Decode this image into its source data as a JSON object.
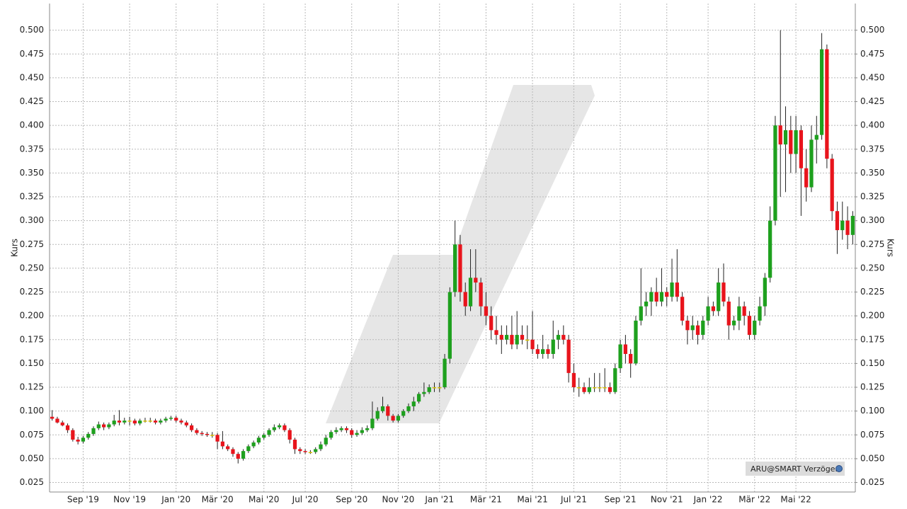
{
  "chart_data": {
    "type": "candlestick",
    "y_label": "Kurs",
    "y2_label": "Kurs",
    "source": "ARU@SMART Verzögert",
    "up_color": "#1ea01e",
    "down_color": "#e8141c",
    "flat_color": "#d9c200",
    "grid": true,
    "ylim": [
      0.015,
      0.528
    ],
    "y2lim": [
      0.015,
      0.528
    ],
    "yticks": [
      {
        "value": 0.025,
        "label": "0.025"
      },
      {
        "value": 0.05,
        "label": "0.050"
      },
      {
        "value": 0.075,
        "label": "0.075"
      },
      {
        "value": 0.1,
        "label": "0.100"
      },
      {
        "value": 0.125,
        "label": "0.125"
      },
      {
        "value": 0.15,
        "label": "0.150"
      },
      {
        "value": 0.175,
        "label": "0.175"
      },
      {
        "value": 0.2,
        "label": "0.200"
      },
      {
        "value": 0.225,
        "label": "0.225"
      },
      {
        "value": 0.25,
        "label": "0.250"
      },
      {
        "value": 0.275,
        "label": "0.275"
      },
      {
        "value": 0.3,
        "label": "0.300"
      },
      {
        "value": 0.325,
        "label": "0.325"
      },
      {
        "value": 0.35,
        "label": "0.350"
      },
      {
        "value": 0.375,
        "label": "0.375"
      },
      {
        "value": 0.4,
        "label": "0.400"
      },
      {
        "value": 0.425,
        "label": "0.425"
      },
      {
        "value": 0.45,
        "label": "0.450"
      },
      {
        "value": 0.475,
        "label": "0.475"
      },
      {
        "value": 0.5,
        "label": "0.500"
      }
    ],
    "y2ticks": [
      {
        "value": 0.025,
        "label": "0.025"
      },
      {
        "value": 0.05,
        "label": "0.050"
      },
      {
        "value": 0.075,
        "label": "0.075"
      },
      {
        "value": 0.1,
        "label": "0.100"
      },
      {
        "value": 0.125,
        "label": "0.125"
      },
      {
        "value": 0.15,
        "label": "0.150"
      },
      {
        "value": 0.175,
        "label": "0.175"
      },
      {
        "value": 0.2,
        "label": "0.200"
      },
      {
        "value": 0.225,
        "label": "0.225"
      },
      {
        "value": 0.25,
        "label": "0.250"
      },
      {
        "value": 0.275,
        "label": "0.275"
      },
      {
        "value": 0.3,
        "label": "0.300"
      },
      {
        "value": 0.325,
        "label": "0.325"
      },
      {
        "value": 0.35,
        "label": "0.350"
      },
      {
        "value": 0.375,
        "label": "0.375"
      },
      {
        "value": 0.4,
        "label": "0.400"
      },
      {
        "value": 0.425,
        "label": "0.425"
      },
      {
        "value": 0.45,
        "label": "0.450"
      },
      {
        "value": 0.475,
        "label": "0.475"
      },
      {
        "value": 0.5,
        "label": "0.500"
      }
    ],
    "categories": [
      null,
      null,
      null,
      null,
      null,
      null,
      "Sep '19",
      null,
      null,
      null,
      null,
      null,
      null,
      null,
      null,
      "Nov '19",
      null,
      null,
      null,
      null,
      null,
      null,
      null,
      null,
      "Jan '20",
      null,
      null,
      null,
      null,
      null,
      null,
      null,
      "Mär '20",
      null,
      null,
      null,
      null,
      null,
      null,
      null,
      null,
      "Mai '20",
      null,
      null,
      null,
      null,
      null,
      null,
      null,
      "Jul '20",
      null,
      null,
      null,
      null,
      null,
      null,
      null,
      null,
      "Sep '20",
      null,
      null,
      null,
      null,
      null,
      null,
      null,
      null,
      "Nov '20",
      null,
      null,
      null,
      null,
      null,
      null,
      null,
      "Jan '21",
      null,
      null,
      null,
      null,
      null,
      null,
      null,
      null,
      "Mär '21",
      null,
      null,
      null,
      null,
      null,
      null,
      null,
      null,
      "Mai '21",
      null,
      null,
      null,
      null,
      null,
      null,
      null,
      "Jul '21",
      null,
      null,
      null,
      null,
      null,
      null,
      null,
      null,
      "Sep '21",
      null,
      null,
      null,
      null,
      null,
      null,
      null,
      null,
      "Nov '21",
      null,
      null,
      null,
      null,
      null,
      null,
      null,
      "Jan '22",
      null,
      null,
      null,
      null,
      null,
      null,
      null,
      null,
      "Mär '22",
      null,
      null,
      null,
      null,
      null,
      null,
      null,
      "Mai '22",
      null,
      null,
      null,
      null,
      null,
      null,
      null,
      null,
      null,
      null,
      null
    ],
    "ohlc": [
      [
        0.094,
        0.101,
        0.09,
        0.092
      ],
      [
        0.092,
        0.094,
        0.087,
        0.088
      ],
      [
        0.088,
        0.09,
        0.084,
        0.085
      ],
      [
        0.085,
        0.087,
        0.077,
        0.08
      ],
      [
        0.08,
        0.082,
        0.068,
        0.07
      ],
      [
        0.07,
        0.073,
        0.065,
        0.068
      ],
      [
        0.068,
        0.074,
        0.066,
        0.072
      ],
      [
        0.072,
        0.078,
        0.07,
        0.076
      ],
      [
        0.076,
        0.084,
        0.074,
        0.082
      ],
      [
        0.082,
        0.089,
        0.08,
        0.086
      ],
      [
        0.086,
        0.088,
        0.08,
        0.083
      ],
      [
        0.083,
        0.088,
        0.081,
        0.086
      ],
      [
        0.086,
        0.096,
        0.084,
        0.09
      ],
      [
        0.09,
        0.101,
        0.085,
        0.088
      ],
      [
        0.088,
        0.093,
        0.086,
        0.09
      ],
      [
        0.09,
        0.094,
        0.085,
        0.09
      ],
      [
        0.09,
        0.092,
        0.085,
        0.087
      ],
      [
        0.087,
        0.092,
        0.085,
        0.09
      ],
      [
        0.09,
        0.093,
        0.088,
        0.09
      ],
      [
        0.09,
        0.093,
        0.088,
        0.09
      ],
      [
        0.09,
        0.092,
        0.086,
        0.088
      ],
      [
        0.088,
        0.092,
        0.086,
        0.09
      ],
      [
        0.09,
        0.094,
        0.088,
        0.092
      ],
      [
        0.092,
        0.095,
        0.09,
        0.093
      ],
      [
        0.093,
        0.095,
        0.088,
        0.09
      ],
      [
        0.09,
        0.092,
        0.086,
        0.088
      ],
      [
        0.088,
        0.09,
        0.083,
        0.085
      ],
      [
        0.085,
        0.087,
        0.078,
        0.08
      ],
      [
        0.08,
        0.082,
        0.075,
        0.077
      ],
      [
        0.077,
        0.079,
        0.074,
        0.076
      ],
      [
        0.076,
        0.078,
        0.073,
        0.075
      ],
      [
        0.075,
        0.078,
        0.072,
        0.075
      ],
      [
        0.075,
        0.077,
        0.06,
        0.068
      ],
      [
        0.068,
        0.079,
        0.06,
        0.063
      ],
      [
        0.063,
        0.065,
        0.058,
        0.06
      ],
      [
        0.06,
        0.062,
        0.052,
        0.055
      ],
      [
        0.055,
        0.057,
        0.045,
        0.05
      ],
      [
        0.05,
        0.06,
        0.048,
        0.058
      ],
      [
        0.058,
        0.065,
        0.056,
        0.063
      ],
      [
        0.063,
        0.069,
        0.061,
        0.067
      ],
      [
        0.067,
        0.074,
        0.065,
        0.072
      ],
      [
        0.072,
        0.077,
        0.07,
        0.075
      ],
      [
        0.075,
        0.082,
        0.073,
        0.08
      ],
      [
        0.08,
        0.086,
        0.078,
        0.083
      ],
      [
        0.083,
        0.087,
        0.081,
        0.085
      ],
      [
        0.085,
        0.087,
        0.078,
        0.08
      ],
      [
        0.08,
        0.082,
        0.066,
        0.07
      ],
      [
        0.07,
        0.072,
        0.055,
        0.06
      ],
      [
        0.06,
        0.062,
        0.055,
        0.058
      ],
      [
        0.058,
        0.06,
        0.055,
        0.057
      ],
      [
        0.057,
        0.059,
        0.055,
        0.057
      ],
      [
        0.057,
        0.062,
        0.055,
        0.06
      ],
      [
        0.06,
        0.068,
        0.058,
        0.065
      ],
      [
        0.065,
        0.075,
        0.063,
        0.072
      ],
      [
        0.072,
        0.08,
        0.07,
        0.078
      ],
      [
        0.078,
        0.083,
        0.076,
        0.08
      ],
      [
        0.08,
        0.084,
        0.078,
        0.082
      ],
      [
        0.082,
        0.084,
        0.077,
        0.08
      ],
      [
        0.08,
        0.082,
        0.072,
        0.075
      ],
      [
        0.075,
        0.08,
        0.073,
        0.077
      ],
      [
        0.077,
        0.083,
        0.075,
        0.08
      ],
      [
        0.08,
        0.085,
        0.078,
        0.082
      ],
      [
        0.082,
        0.11,
        0.08,
        0.092
      ],
      [
        0.092,
        0.104,
        0.09,
        0.1
      ],
      [
        0.1,
        0.115,
        0.098,
        0.105
      ],
      [
        0.105,
        0.107,
        0.09,
        0.095
      ],
      [
        0.095,
        0.097,
        0.088,
        0.09
      ],
      [
        0.09,
        0.097,
        0.088,
        0.095
      ],
      [
        0.095,
        0.102,
        0.093,
        0.1
      ],
      [
        0.1,
        0.108,
        0.098,
        0.105
      ],
      [
        0.105,
        0.115,
        0.1,
        0.11
      ],
      [
        0.11,
        0.12,
        0.108,
        0.118
      ],
      [
        0.118,
        0.13,
        0.115,
        0.12
      ],
      [
        0.12,
        0.128,
        0.118,
        0.125
      ],
      [
        0.125,
        0.13,
        0.12,
        0.125
      ],
      [
        0.125,
        0.13,
        0.12,
        0.125
      ],
      [
        0.125,
        0.16,
        0.123,
        0.155
      ],
      [
        0.155,
        0.23,
        0.15,
        0.225
      ],
      [
        0.225,
        0.3,
        0.22,
        0.275
      ],
      [
        0.275,
        0.285,
        0.215,
        0.225
      ],
      [
        0.225,
        0.235,
        0.2,
        0.21
      ],
      [
        0.21,
        0.27,
        0.205,
        0.24
      ],
      [
        0.24,
        0.27,
        0.225,
        0.235
      ],
      [
        0.235,
        0.24,
        0.2,
        0.21
      ],
      [
        0.21,
        0.225,
        0.19,
        0.2
      ],
      [
        0.2,
        0.21,
        0.175,
        0.185
      ],
      [
        0.185,
        0.2,
        0.17,
        0.18
      ],
      [
        0.18,
        0.19,
        0.16,
        0.175
      ],
      [
        0.175,
        0.19,
        0.17,
        0.18
      ],
      [
        0.18,
        0.2,
        0.165,
        0.17
      ],
      [
        0.17,
        0.205,
        0.165,
        0.18
      ],
      [
        0.18,
        0.19,
        0.17,
        0.175
      ],
      [
        0.175,
        0.19,
        0.165,
        0.175
      ],
      [
        0.175,
        0.205,
        0.16,
        0.165
      ],
      [
        0.165,
        0.17,
        0.155,
        0.16
      ],
      [
        0.16,
        0.18,
        0.155,
        0.165
      ],
      [
        0.165,
        0.17,
        0.155,
        0.16
      ],
      [
        0.16,
        0.195,
        0.155,
        0.175
      ],
      [
        0.175,
        0.185,
        0.165,
        0.18
      ],
      [
        0.18,
        0.19,
        0.17,
        0.175
      ],
      [
        0.175,
        0.18,
        0.13,
        0.14
      ],
      [
        0.14,
        0.15,
        0.12,
        0.125
      ],
      [
        0.125,
        0.135,
        0.115,
        0.125
      ],
      [
        0.125,
        0.13,
        0.118,
        0.12
      ],
      [
        0.12,
        0.135,
        0.118,
        0.125
      ],
      [
        0.125,
        0.14,
        0.12,
        0.125
      ],
      [
        0.125,
        0.14,
        0.12,
        0.125
      ],
      [
        0.125,
        0.145,
        0.12,
        0.125
      ],
      [
        0.125,
        0.13,
        0.118,
        0.12
      ],
      [
        0.12,
        0.15,
        0.118,
        0.145
      ],
      [
        0.145,
        0.175,
        0.14,
        0.17
      ],
      [
        0.17,
        0.18,
        0.15,
        0.16
      ],
      [
        0.16,
        0.165,
        0.135,
        0.15
      ],
      [
        0.15,
        0.2,
        0.148,
        0.195
      ],
      [
        0.195,
        0.25,
        0.19,
        0.21
      ],
      [
        0.21,
        0.225,
        0.2,
        0.215
      ],
      [
        0.215,
        0.23,
        0.2,
        0.225
      ],
      [
        0.225,
        0.24,
        0.21,
        0.215
      ],
      [
        0.215,
        0.25,
        0.21,
        0.225
      ],
      [
        0.225,
        0.23,
        0.21,
        0.22
      ],
      [
        0.22,
        0.26,
        0.215,
        0.235
      ],
      [
        0.235,
        0.27,
        0.215,
        0.22
      ],
      [
        0.22,
        0.225,
        0.19,
        0.195
      ],
      [
        0.195,
        0.2,
        0.17,
        0.185
      ],
      [
        0.185,
        0.2,
        0.175,
        0.19
      ],
      [
        0.19,
        0.195,
        0.17,
        0.18
      ],
      [
        0.18,
        0.2,
        0.175,
        0.195
      ],
      [
        0.195,
        0.22,
        0.19,
        0.21
      ],
      [
        0.21,
        0.215,
        0.2,
        0.205
      ],
      [
        0.205,
        0.25,
        0.2,
        0.235
      ],
      [
        0.235,
        0.255,
        0.21,
        0.215
      ],
      [
        0.215,
        0.22,
        0.175,
        0.19
      ],
      [
        0.19,
        0.2,
        0.185,
        0.195
      ],
      [
        0.195,
        0.22,
        0.185,
        0.21
      ],
      [
        0.21,
        0.215,
        0.19,
        0.2
      ],
      [
        0.2,
        0.205,
        0.175,
        0.18
      ],
      [
        0.18,
        0.2,
        0.175,
        0.195
      ],
      [
        0.195,
        0.22,
        0.19,
        0.21
      ],
      [
        0.21,
        0.245,
        0.2,
        0.24
      ],
      [
        0.24,
        0.315,
        0.235,
        0.3
      ],
      [
        0.3,
        0.41,
        0.295,
        0.4
      ],
      [
        0.4,
        0.5,
        0.325,
        0.38
      ],
      [
        0.38,
        0.42,
        0.33,
        0.395
      ],
      [
        0.395,
        0.41,
        0.35,
        0.37
      ],
      [
        0.37,
        0.41,
        0.35,
        0.395
      ],
      [
        0.395,
        0.4,
        0.305,
        0.355
      ],
      [
        0.355,
        0.375,
        0.32,
        0.335
      ],
      [
        0.335,
        0.4,
        0.33,
        0.385
      ],
      [
        0.385,
        0.41,
        0.36,
        0.39
      ],
      [
        0.39,
        0.497,
        0.385,
        0.48
      ],
      [
        0.48,
        0.485,
        0.355,
        0.365
      ],
      [
        0.365,
        0.37,
        0.3,
        0.31
      ],
      [
        0.31,
        0.32,
        0.265,
        0.29
      ],
      [
        0.29,
        0.32,
        0.28,
        0.3
      ],
      [
        0.3,
        0.315,
        0.27,
        0.285
      ],
      [
        0.285,
        0.31,
        0.275,
        0.305
      ]
    ]
  }
}
